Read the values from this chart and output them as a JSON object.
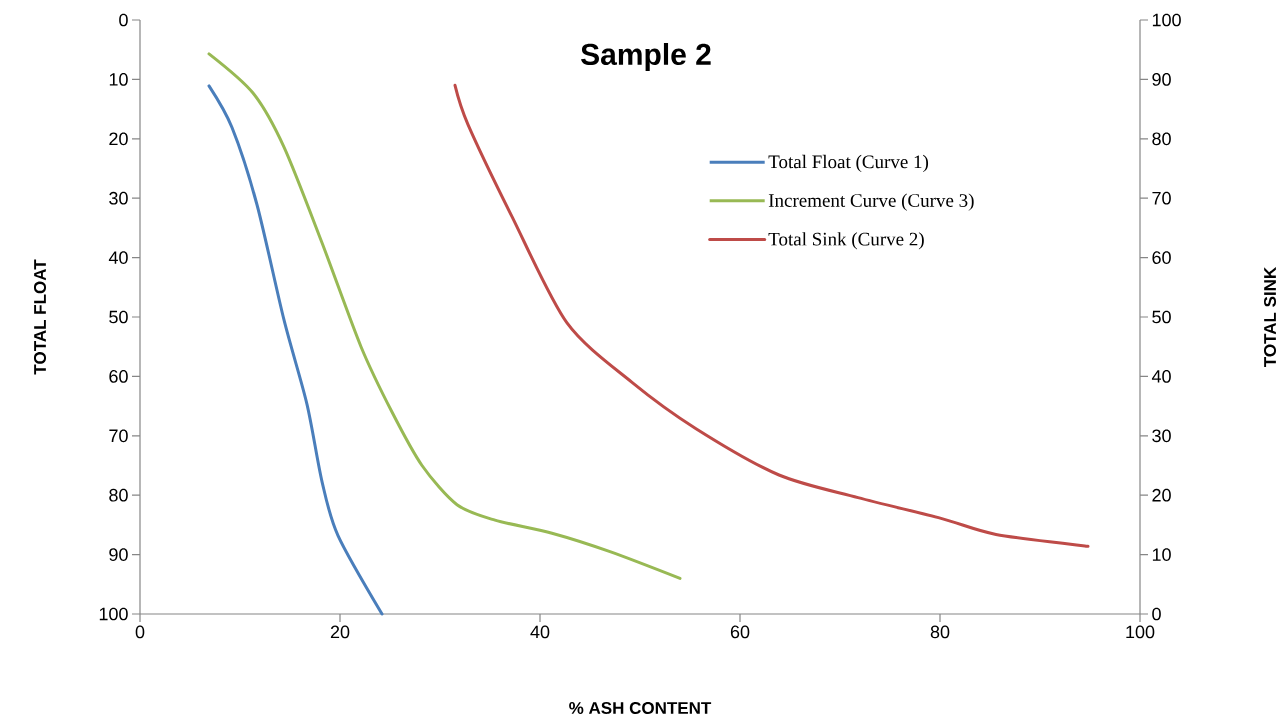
{
  "chart_data": {
    "type": "line",
    "title": "Sample 2",
    "xlabel": "% ASH CONTENT",
    "ylabel": "TOTAL FLOAT",
    "y2label": "TOTAL SINK",
    "xlim": [
      0,
      100
    ],
    "xticks": [
      0,
      20,
      40,
      60,
      80,
      100
    ],
    "ylim": [
      100,
      0
    ],
    "yticks": [
      0,
      10,
      20,
      30,
      40,
      50,
      60,
      70,
      80,
      90,
      100
    ],
    "y2lim": [
      0,
      100
    ],
    "y2ticks": [
      0,
      10,
      20,
      30,
      40,
      50,
      60,
      70,
      80,
      90,
      100
    ],
    "legend": "top right",
    "grid": false,
    "series": [
      {
        "name": "Total Float (Curve 1)",
        "color": "#4a7ebb",
        "x": [
          6.9,
          9.2,
          11.7,
          14.4,
          16.7,
          18.2,
          19.8,
          24.2
        ],
        "values": [
          11.1,
          18.1,
          31.1,
          50.5,
          64.7,
          77.7,
          86.8,
          100
        ]
      },
      {
        "name": "Increment Curve (Curve 3)",
        "color": "#98b954",
        "x": [
          6.9,
          11.3,
          14.4,
          18.2,
          22.1,
          25.2,
          28.2,
          31.7,
          35.5,
          41.2,
          47,
          54
        ],
        "values": [
          5.7,
          12.3,
          21.4,
          37.5,
          55,
          66,
          75,
          81.6,
          84.2,
          86.4,
          89.5,
          94
        ]
      },
      {
        "name": "Total Sink (Curve 2)",
        "color": "#be4b48",
        "axis": "y2",
        "x": [
          31.5,
          32.8,
          37.2,
          42.7,
          49.2,
          55.6,
          63.9,
          71.8,
          80.1,
          85.6,
          94.8
        ],
        "values": [
          89,
          82.4,
          66.9,
          49,
          39,
          31.2,
          23.4,
          19.6,
          16.1,
          13.4,
          11.4
        ]
      }
    ]
  }
}
